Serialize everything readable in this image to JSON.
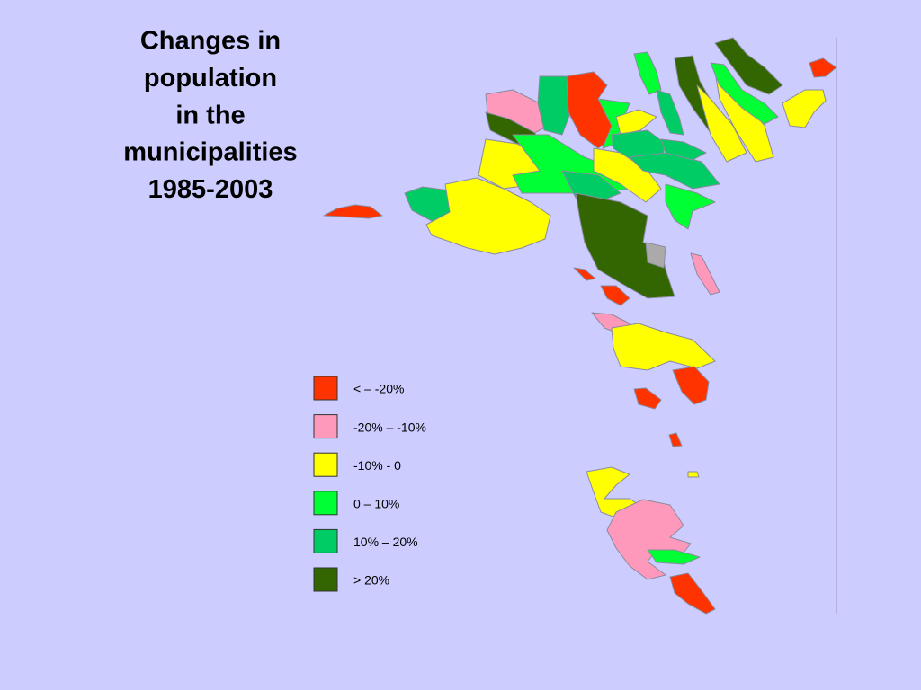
{
  "title_lines": [
    "Changes in",
    "population",
    "in the",
    "municipalities",
    "1985-2003"
  ],
  "legend": [
    {
      "label": "< – -20%",
      "color": "#ff3300"
    },
    {
      "label": "-20% –  -10%",
      "color": "#ff99bb"
    },
    {
      "label": "-10% - 0",
      "color": "#ffff00"
    },
    {
      "label": "0 – 10%",
      "color": "#00ff33"
    },
    {
      "label": "10% – 20%",
      "color": "#00cc66"
    },
    {
      "label": "> 20%",
      "color": "#336600"
    }
  ]
}
